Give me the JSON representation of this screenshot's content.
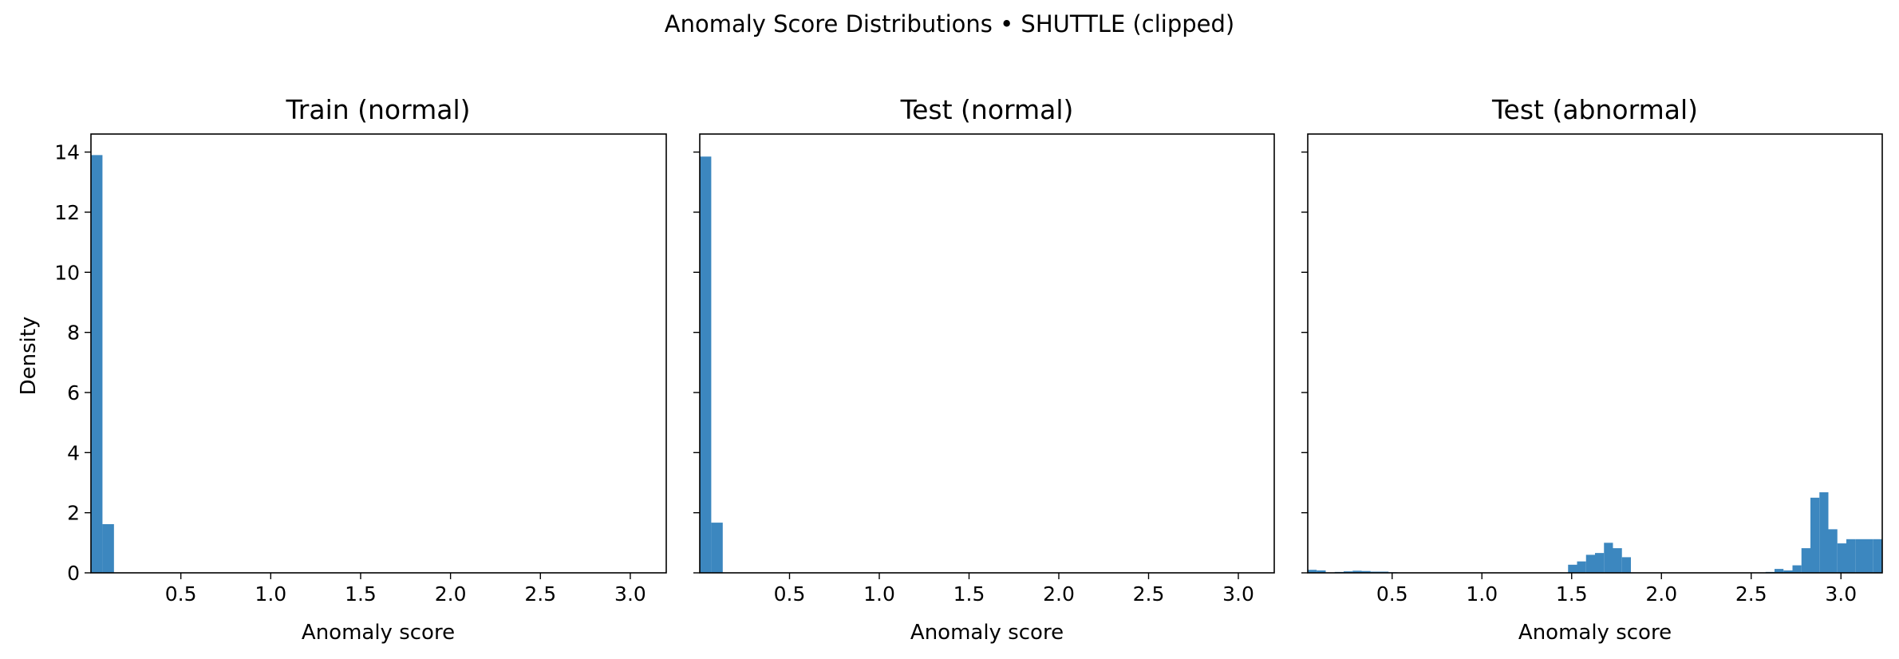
{
  "figure": {
    "suptitle": "Anomaly Score Distributions • SHUTTLE (clipped)"
  },
  "chart_data": [
    {
      "type": "bar",
      "title": "Train (normal)",
      "xlabel": "Anomaly score",
      "ylabel": "Density",
      "xlim": [
        0.0,
        3.2
      ],
      "ylim": [
        0,
        14.6
      ],
      "xticks": [
        0.5,
        1.0,
        1.5,
        2.0,
        2.5,
        3.0
      ],
      "xtick_labels": [
        "0.5",
        "1.0",
        "1.5",
        "2.0",
        "2.5",
        "3.0"
      ],
      "yticks": [
        0,
        2,
        4,
        6,
        8,
        10,
        12,
        14
      ],
      "ytick_labels": [
        "0",
        "2",
        "4",
        "6",
        "8",
        "10",
        "12",
        "14"
      ],
      "bin_width": 0.064,
      "bin_starts": [
        0.0,
        0.064
      ],
      "values": [
        13.9,
        1.62
      ],
      "color": "#3c87bf",
      "grid": false
    },
    {
      "type": "bar",
      "title": "Test (normal)",
      "xlabel": "Anomaly score",
      "ylabel": "",
      "xlim": [
        0.0,
        3.2
      ],
      "ylim": [
        0,
        14.6
      ],
      "xticks": [
        0.5,
        1.0,
        1.5,
        2.0,
        2.5,
        3.0
      ],
      "xtick_labels": [
        "0.5",
        "1.0",
        "1.5",
        "2.0",
        "2.5",
        "3.0"
      ],
      "yticks": [
        0,
        2,
        4,
        6,
        8,
        10,
        12,
        14
      ],
      "ytick_labels": [],
      "bin_width": 0.064,
      "bin_starts": [
        0.0,
        0.064
      ],
      "values": [
        13.85,
        1.67
      ],
      "color": "#3c87bf",
      "grid": false
    },
    {
      "type": "bar",
      "title": "Test (abnormal)",
      "xlabel": "Anomaly score",
      "ylabel": "",
      "xlim": [
        0.03,
        3.23
      ],
      "ylim": [
        0,
        14.6
      ],
      "xticks": [
        0.5,
        1.0,
        1.5,
        2.0,
        2.5,
        3.0
      ],
      "xtick_labels": [
        "0.5",
        "1.0",
        "1.5",
        "2.0",
        "2.5",
        "3.0"
      ],
      "yticks": [
        0,
        2,
        4,
        6,
        8,
        10,
        12,
        14
      ],
      "ytick_labels": [],
      "bin_width": 0.05,
      "bin_starts": [
        0.03,
        0.08,
        0.13,
        0.18,
        0.23,
        0.28,
        0.33,
        0.38,
        0.43,
        0.48,
        1.48,
        1.53,
        1.58,
        1.63,
        1.68,
        1.73,
        1.78,
        1.83,
        1.88,
        2.58,
        2.63,
        2.68,
        2.73,
        2.78,
        2.83,
        2.88,
        2.93,
        2.98,
        3.03,
        3.08,
        3.13,
        3.18
      ],
      "values": [
        0.1,
        0.08,
        0.0,
        0.03,
        0.05,
        0.07,
        0.06,
        0.04,
        0.04,
        0.02,
        0.27,
        0.38,
        0.6,
        0.66,
        1.0,
        0.82,
        0.52,
        0.0,
        0.0,
        0.03,
        0.13,
        0.08,
        0.25,
        0.82,
        2.5,
        2.68,
        1.45,
        0.98,
        1.12,
        1.12,
        1.12,
        1.12
      ],
      "color": "#3c87bf",
      "grid": false
    }
  ]
}
